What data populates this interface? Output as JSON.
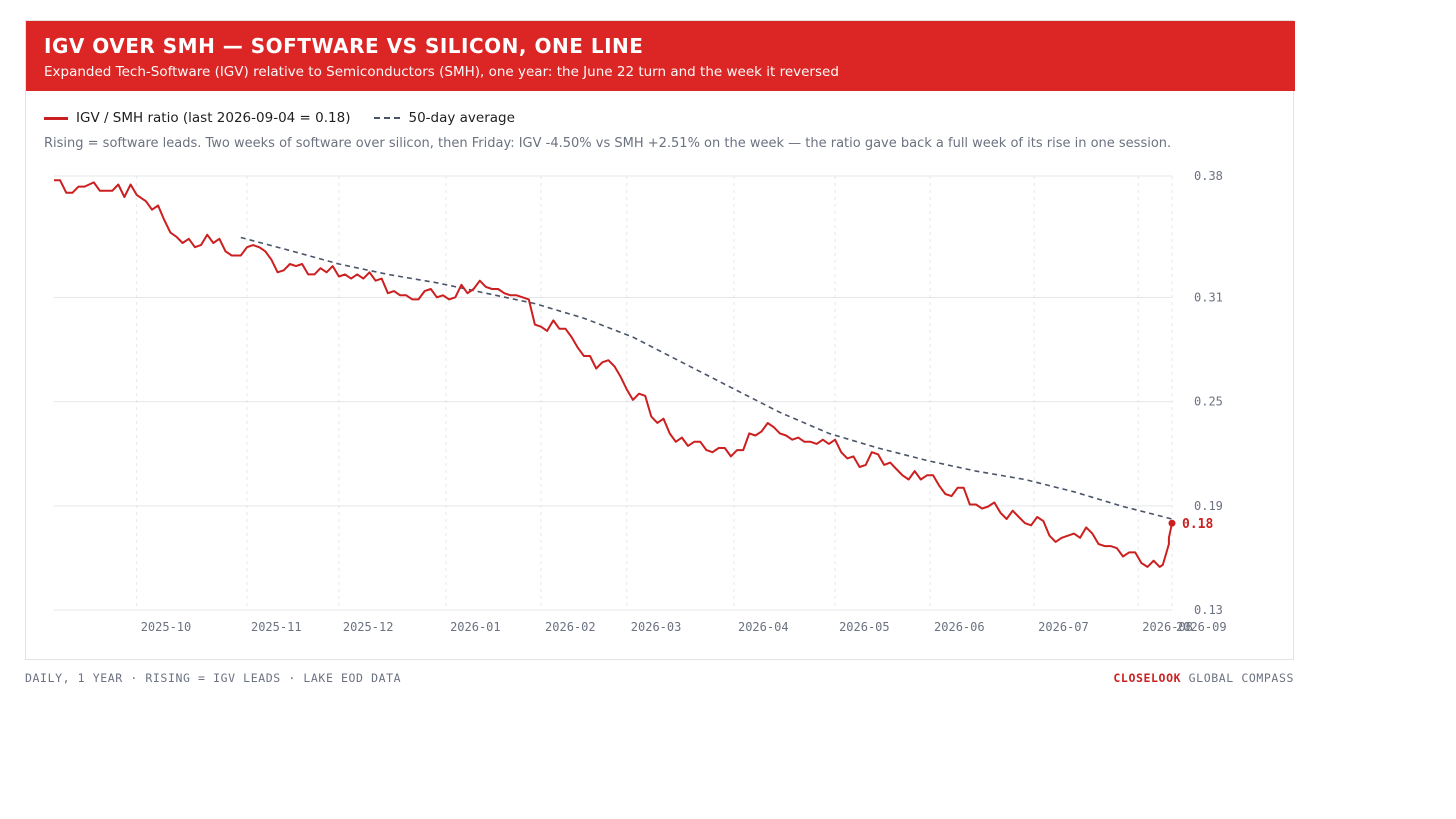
{
  "header": {
    "title": "IGV OVER SMH — SOFTWARE VS SILICON, ONE LINE",
    "subtitle": "Expanded Tech-Software (IGV) relative to Semiconductors (SMH), one year: the June 22 turn and the week it reversed"
  },
  "legend": {
    "ratio_label": "IGV / SMH ratio (last 2026-09-04 = 0.18)",
    "avg_label": "50-day average"
  },
  "note": "Rising = software leads. Two weeks of software over silicon, then Friday: IGV -4.50% vs SMH +2.51% on the week — the ratio gave back a full week of its rise in one session.",
  "footer": {
    "left": "DAILY, 1 YEAR · RISING = IGV LEADS · LAKE EOD DATA",
    "brand": "CLOSELOOK",
    "right": "GLOBAL COMPASS"
  },
  "colors": {
    "accent": "#dc2626",
    "ratio_line": "#cc1f1f",
    "avg_line": "#4a5568"
  },
  "chart_data": {
    "type": "line",
    "x_range": [
      "2025-09-04",
      "2026-09-04"
    ],
    "ylim": [
      0.13,
      0.38
    ],
    "y_ticks": [
      {
        "value": 0.38,
        "label": "0.38"
      },
      {
        "value": 0.31,
        "label": "0.31"
      },
      {
        "value": 0.25,
        "label": "0.25"
      },
      {
        "value": 0.19,
        "label": "0.19"
      },
      {
        "value": 0.13,
        "label": "0.13"
      }
    ],
    "x_ticks": [
      {
        "date": "2025-10-01",
        "label": "2025-10"
      },
      {
        "date": "2025-11-06",
        "label": "2025-11"
      },
      {
        "date": "2025-12-06",
        "label": "2025-12"
      },
      {
        "date": "2026-01-10",
        "label": "2026-01"
      },
      {
        "date": "2026-02-10",
        "label": "2026-02"
      },
      {
        "date": "2026-03-10",
        "label": "2026-03"
      },
      {
        "date": "2026-04-14",
        "label": "2026-04"
      },
      {
        "date": "2026-05-17",
        "label": "2026-05"
      },
      {
        "date": "2026-06-17",
        "label": "2026-06"
      },
      {
        "date": "2026-07-21",
        "label": "2026-07"
      },
      {
        "date": "2026-08-24",
        "label": "2026-08"
      },
      {
        "date": "2026-09-04",
        "label": "2026-09"
      }
    ],
    "last_label": "0.18",
    "series": [
      {
        "name": "IGV / SMH ratio (last 2026-09-04 = 0.18)",
        "points": [
          [
            "2025-09-04",
            0.3775
          ],
          [
            "2025-09-06",
            0.3775
          ],
          [
            "2025-09-08",
            0.3703
          ],
          [
            "2025-09-10",
            0.3703
          ],
          [
            "2025-09-12",
            0.3739
          ],
          [
            "2025-09-14",
            0.3739
          ],
          [
            "2025-09-17",
            0.3763
          ],
          [
            "2025-09-19",
            0.3715
          ],
          [
            "2025-09-21",
            0.3715
          ],
          [
            "2025-09-23",
            0.3715
          ],
          [
            "2025-09-25",
            0.3751
          ],
          [
            "2025-09-27",
            0.3679
          ],
          [
            "2025-09-29",
            0.3751
          ],
          [
            "2025-10-01",
            0.3691
          ],
          [
            "2025-10-04",
            0.3655
          ],
          [
            "2025-10-06",
            0.3606
          ],
          [
            "2025-10-08",
            0.363
          ],
          [
            "2025-10-10",
            0.3546
          ],
          [
            "2025-10-12",
            0.3474
          ],
          [
            "2025-10-14",
            0.345
          ],
          [
            "2025-10-16",
            0.3414
          ],
          [
            "2025-10-18",
            0.3438
          ],
          [
            "2025-10-20",
            0.339
          ],
          [
            "2025-10-22",
            0.3402
          ],
          [
            "2025-10-24",
            0.3462
          ],
          [
            "2025-10-26",
            0.3414
          ],
          [
            "2025-10-28",
            0.3438
          ],
          [
            "2025-10-30",
            0.3366
          ],
          [
            "2025-11-01",
            0.3342
          ],
          [
            "2025-11-04",
            0.3342
          ],
          [
            "2025-11-06",
            0.339
          ],
          [
            "2025-11-08",
            0.3402
          ],
          [
            "2025-11-10",
            0.339
          ],
          [
            "2025-11-12",
            0.3366
          ],
          [
            "2025-11-14",
            0.3317
          ],
          [
            "2025-11-16",
            0.3245
          ],
          [
            "2025-11-18",
            0.3257
          ],
          [
            "2025-11-20",
            0.3293
          ],
          [
            "2025-11-22",
            0.3281
          ],
          [
            "2025-11-24",
            0.3293
          ],
          [
            "2025-11-26",
            0.3233
          ],
          [
            "2025-11-28",
            0.3233
          ],
          [
            "2025-11-30",
            0.3269
          ],
          [
            "2025-12-02",
            0.3245
          ],
          [
            "2025-12-04",
            0.3281
          ],
          [
            "2025-12-06",
            0.3221
          ],
          [
            "2025-12-08",
            0.3233
          ],
          [
            "2025-12-10",
            0.3209
          ],
          [
            "2025-12-12",
            0.3233
          ],
          [
            "2025-12-14",
            0.3209
          ],
          [
            "2025-12-16",
            0.3245
          ],
          [
            "2025-12-18",
            0.3197
          ],
          [
            "2025-12-20",
            0.3209
          ],
          [
            "2025-12-22",
            0.3125
          ],
          [
            "2025-12-24",
            0.3137
          ],
          [
            "2025-12-26",
            0.3113
          ],
          [
            "2025-12-28",
            0.3113
          ],
          [
            "2025-12-30",
            0.3089
          ],
          [
            "2026-01-01",
            0.3089
          ],
          [
            "2026-01-03",
            0.3137
          ],
          [
            "2026-01-05",
            0.3149
          ],
          [
            "2026-01-07",
            0.3101
          ],
          [
            "2026-01-09",
            0.3113
          ],
          [
            "2026-01-11",
            0.3089
          ],
          [
            "2026-01-13",
            0.3101
          ],
          [
            "2026-01-15",
            0.3173
          ],
          [
            "2026-01-17",
            0.3125
          ],
          [
            "2026-01-19",
            0.3149
          ],
          [
            "2026-01-21",
            0.3197
          ],
          [
            "2026-01-23",
            0.3161
          ],
          [
            "2026-01-25",
            0.3149
          ],
          [
            "2026-01-27",
            0.3149
          ],
          [
            "2026-01-29",
            0.3125
          ],
          [
            "2026-01-31",
            0.3113
          ],
          [
            "2026-02-02",
            0.3113
          ],
          [
            "2026-02-04",
            0.3101
          ],
          [
            "2026-02-06",
            0.3089
          ],
          [
            "2026-02-08",
            0.2944
          ],
          [
            "2026-02-10",
            0.2932
          ],
          [
            "2026-02-12",
            0.2908
          ],
          [
            "2026-02-14",
            0.2968
          ],
          [
            "2026-02-16",
            0.292
          ],
          [
            "2026-02-18",
            0.292
          ],
          [
            "2026-02-20",
            0.2872
          ],
          [
            "2026-02-22",
            0.2811
          ],
          [
            "2026-02-24",
            0.2763
          ],
          [
            "2026-02-26",
            0.2763
          ],
          [
            "2026-02-28",
            0.2691
          ],
          [
            "2026-03-02",
            0.2727
          ],
          [
            "2026-03-04",
            0.2739
          ],
          [
            "2026-03-06",
            0.2703
          ],
          [
            "2026-03-08",
            0.2643
          ],
          [
            "2026-03-10",
            0.257
          ],
          [
            "2026-03-12",
            0.251
          ],
          [
            "2026-03-14",
            0.2546
          ],
          [
            "2026-03-16",
            0.2534
          ],
          [
            "2026-03-18",
            0.2414
          ],
          [
            "2026-03-20",
            0.2378
          ],
          [
            "2026-03-22",
            0.2402
          ],
          [
            "2026-03-24",
            0.2317
          ],
          [
            "2026-03-26",
            0.2269
          ],
          [
            "2026-03-28",
            0.2293
          ],
          [
            "2026-03-30",
            0.2245
          ],
          [
            "2026-04-01",
            0.2269
          ],
          [
            "2026-04-03",
            0.2269
          ],
          [
            "2026-04-05",
            0.2221
          ],
          [
            "2026-04-07",
            0.2209
          ],
          [
            "2026-04-09",
            0.2233
          ],
          [
            "2026-04-11",
            0.2233
          ],
          [
            "2026-04-13",
            0.2185
          ],
          [
            "2026-04-15",
            0.2221
          ],
          [
            "2026-04-17",
            0.2221
          ],
          [
            "2026-04-19",
            0.2317
          ],
          [
            "2026-04-21",
            0.2305
          ],
          [
            "2026-04-23",
            0.2329
          ],
          [
            "2026-04-25",
            0.2377
          ],
          [
            "2026-04-27",
            0.2353
          ],
          [
            "2026-04-29",
            0.2317
          ],
          [
            "2026-05-01",
            0.2305
          ],
          [
            "2026-05-03",
            0.2281
          ],
          [
            "2026-05-05",
            0.2293
          ],
          [
            "2026-05-07",
            0.2269
          ],
          [
            "2026-05-09",
            0.2269
          ],
          [
            "2026-05-11",
            0.2257
          ],
          [
            "2026-05-13",
            0.2281
          ],
          [
            "2026-05-15",
            0.2257
          ],
          [
            "2026-05-17",
            0.2281
          ],
          [
            "2026-05-19",
            0.2209
          ],
          [
            "2026-05-21",
            0.2173
          ],
          [
            "2026-05-23",
            0.2185
          ],
          [
            "2026-05-25",
            0.2124
          ],
          [
            "2026-05-27",
            0.2136
          ],
          [
            "2026-05-29",
            0.2209
          ],
          [
            "2026-05-31",
            0.2197
          ],
          [
            "2026-06-02",
            0.2136
          ],
          [
            "2026-06-04",
            0.2149
          ],
          [
            "2026-06-06",
            0.2112
          ],
          [
            "2026-06-08",
            0.2076
          ],
          [
            "2026-06-10",
            0.2052
          ],
          [
            "2026-06-12",
            0.21
          ],
          [
            "2026-06-14",
            0.2052
          ],
          [
            "2026-06-16",
            0.2076
          ],
          [
            "2026-06-18",
            0.2076
          ],
          [
            "2026-06-20",
            0.2016
          ],
          [
            "2026-06-22",
            0.1968
          ],
          [
            "2026-06-24",
            0.1956
          ],
          [
            "2026-06-26",
            0.2004
          ],
          [
            "2026-06-28",
            0.2004
          ],
          [
            "2026-06-30",
            0.1908
          ],
          [
            "2026-07-02",
            0.1908
          ],
          [
            "2026-07-04",
            0.1884
          ],
          [
            "2026-07-06",
            0.1896
          ],
          [
            "2026-07-08",
            0.192
          ],
          [
            "2026-07-10",
            0.186
          ],
          [
            "2026-07-12",
            0.1824
          ],
          [
            "2026-07-14",
            0.1872
          ],
          [
            "2026-07-16",
            0.1836
          ],
          [
            "2026-07-18",
            0.18
          ],
          [
            "2026-07-20",
            0.1788
          ],
          [
            "2026-07-22",
            0.1836
          ],
          [
            "2026-07-24",
            0.1812
          ],
          [
            "2026-07-26",
            0.1728
          ],
          [
            "2026-07-28",
            0.1692
          ],
          [
            "2026-07-30",
            0.1716
          ],
          [
            "2026-08-01",
            0.1728
          ],
          [
            "2026-08-03",
            0.174
          ],
          [
            "2026-08-05",
            0.1716
          ],
          [
            "2026-08-07",
            0.1776
          ],
          [
            "2026-08-09",
            0.174
          ],
          [
            "2026-08-11",
            0.168
          ],
          [
            "2026-08-13",
            0.1668
          ],
          [
            "2026-08-15",
            0.1668
          ],
          [
            "2026-08-17",
            0.1656
          ],
          [
            "2026-08-19",
            0.1608
          ],
          [
            "2026-08-21",
            0.1632
          ],
          [
            "2026-08-23",
            0.1632
          ],
          [
            "2026-08-25",
            0.1571
          ],
          [
            "2026-08-27",
            0.1548
          ],
          [
            "2026-08-29",
            0.1584
          ],
          [
            "2026-08-31",
            0.1548
          ],
          [
            "2026-09-01",
            0.156
          ],
          [
            "2026-09-02",
            0.162
          ],
          [
            "2026-09-03",
            0.168
          ],
          [
            "2026-09-03",
            0.1716
          ],
          [
            "2026-09-04",
            0.18
          ]
        ]
      },
      {
        "name": "50-day average",
        "points": [
          [
            "2025-11-04",
            0.3446
          ],
          [
            "2025-11-20",
            0.3371
          ],
          [
            "2025-12-06",
            0.3293
          ],
          [
            "2025-12-22",
            0.3233
          ],
          [
            "2026-01-07",
            0.3185
          ],
          [
            "2026-01-23",
            0.3125
          ],
          [
            "2026-02-08",
            0.3065
          ],
          [
            "2026-02-24",
            0.2981
          ],
          [
            "2026-03-12",
            0.2872
          ],
          [
            "2026-03-28",
            0.2727
          ],
          [
            "2026-04-13",
            0.2582
          ],
          [
            "2026-04-29",
            0.2438
          ],
          [
            "2026-05-15",
            0.2317
          ],
          [
            "2026-05-31",
            0.2233
          ],
          [
            "2026-06-16",
            0.2161
          ],
          [
            "2026-07-02",
            0.21
          ],
          [
            "2026-07-18",
            0.2052
          ],
          [
            "2026-08-03",
            0.1981
          ],
          [
            "2026-08-19",
            0.1896
          ],
          [
            "2026-09-04",
            0.1824
          ]
        ]
      }
    ]
  }
}
